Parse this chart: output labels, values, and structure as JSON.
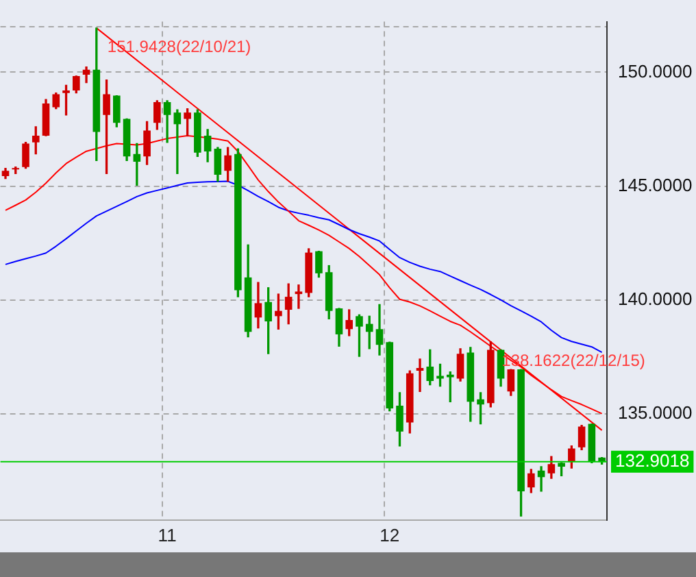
{
  "chart_data": {
    "type": "candlestick",
    "categories": [
      null,
      null,
      null,
      null,
      null,
      null,
      null,
      null,
      null,
      null,
      null,
      null,
      null,
      null,
      null,
      null,
      "11",
      null,
      null,
      null,
      null,
      null,
      null,
      null,
      null,
      null,
      null,
      null,
      null,
      null,
      null,
      null,
      null,
      null,
      null,
      null,
      null,
      null,
      "12",
      null,
      null,
      null,
      null,
      null,
      null,
      null,
      null,
      null,
      null,
      null,
      null,
      null,
      null,
      null,
      null,
      null,
      null,
      null,
      null,
      null
    ],
    "ohlc": [
      [
        145.44,
        145.78,
        145.33,
        145.67
      ],
      [
        145.73,
        145.84,
        145.55,
        145.73
      ],
      [
        145.84,
        146.92,
        145.78,
        146.87
      ],
      [
        146.92,
        147.61,
        146.41,
        147.21
      ],
      [
        147.21,
        148.8,
        147.21,
        148.63
      ],
      [
        148.46,
        149.09,
        148.4,
        149.03
      ],
      [
        149.09,
        149.43,
        148.12,
        149.2
      ],
      [
        149.2,
        149.83,
        149.09,
        149.83
      ],
      [
        149.89,
        150.23,
        149.54,
        150.11
      ],
      [
        150.11,
        151.9428,
        146.12,
        147.38
      ],
      [
        148.12,
        149.66,
        145.55,
        149.03
      ],
      [
        148.97,
        148.97,
        147.6,
        147.78
      ],
      [
        147.95,
        147.95,
        146.12,
        146.3
      ],
      [
        146.41,
        146.87,
        145.04,
        146.07
      ],
      [
        146.3,
        147.83,
        145.95,
        147.44
      ],
      [
        147.78,
        148.75,
        147.49,
        148.69
      ],
      [
        148.69,
        148.75,
        146.92,
        148.12
      ],
      [
        148.23,
        148.35,
        145.55,
        147.72
      ],
      [
        147.95,
        148.4,
        147.21,
        148.23
      ],
      [
        148.23,
        148.35,
        146.3,
        146.47
      ],
      [
        147.21,
        147.49,
        146.07,
        146.52
      ],
      [
        146.64,
        146.7,
        145.21,
        145.5
      ],
      [
        145.67,
        146.7,
        145.21,
        146.35
      ],
      [
        146.41,
        146.64,
        140.14,
        140.43
      ],
      [
        140.99,
        142.42,
        138.38,
        138.6
      ],
      [
        139.23,
        140.77,
        138.77,
        139.86
      ],
      [
        139.91,
        140.54,
        137.64,
        139.06
      ],
      [
        139.29,
        140.26,
        138.72,
        139.52
      ],
      [
        139.57,
        140.71,
        138.95,
        140.14
      ],
      [
        140.26,
        140.66,
        139.63,
        140.37
      ],
      [
        140.31,
        142.25,
        140.14,
        142.08
      ],
      [
        142.14,
        142.14,
        141.0,
        141.17
      ],
      [
        141.22,
        141.51,
        139.17,
        139.52
      ],
      [
        139.63,
        139.63,
        137.97,
        138.49
      ],
      [
        138.72,
        139.57,
        138.43,
        139.12
      ],
      [
        139.29,
        139.35,
        137.52,
        138.83
      ],
      [
        138.95,
        139.29,
        137.86,
        138.6
      ],
      [
        138.72,
        139.8,
        137.58,
        138.03
      ],
      [
        138.15,
        138.15,
        135.13,
        135.24
      ],
      [
        135.36,
        135.93,
        133.59,
        134.22
      ],
      [
        134.62,
        136.89,
        134.16,
        136.78
      ],
      [
        136.89,
        137.41,
        135.98,
        137.01
      ],
      [
        137.07,
        137.81,
        136.27,
        136.44
      ],
      [
        136.67,
        137.18,
        136.21,
        136.55
      ],
      [
        136.72,
        136.84,
        135.53,
        136.61
      ],
      [
        136.55,
        137.86,
        136.44,
        137.64
      ],
      [
        137.69,
        137.92,
        134.67,
        135.53
      ],
      [
        135.64,
        135.93,
        134.56,
        135.41
      ],
      [
        135.47,
        138.1622,
        135.3,
        137.81
      ],
      [
        137.81,
        137.81,
        136.21,
        136.55
      ],
      [
        135.98,
        136.95,
        135.81,
        136.95
      ],
      [
        136.95,
        136.95,
        130.51,
        131.6
      ],
      [
        131.77,
        132.56,
        131.54,
        132.39
      ],
      [
        132.51,
        132.68,
        131.6,
        132.22
      ],
      [
        132.39,
        133.13,
        132.17,
        132.79
      ],
      [
        132.85,
        132.85,
        132.28,
        132.68
      ],
      [
        132.9,
        133.59,
        132.62,
        133.48
      ],
      [
        133.53,
        134.5,
        133.42,
        134.44
      ],
      [
        134.56,
        134.56,
        132.85,
        132.9
      ],
      [
        133.08,
        133.08,
        132.79,
        132.9
      ]
    ],
    "colors": [
      "#d00000",
      "#d00000",
      "#d00000",
      "#d00000",
      "#d00000",
      "#d00000",
      "#d00000",
      "#d00000",
      "#d00000",
      "#009900",
      "#d00000",
      "#009900",
      "#009900",
      "#009900",
      "#d00000",
      "#d00000",
      "#009900",
      "#009900",
      "#d00000",
      "#009900",
      "#009900",
      "#009900",
      "#d00000",
      "#009900",
      "#009900",
      "#d00000",
      "#009900",
      "#d00000",
      "#d00000",
      "#d00000",
      "#d00000",
      "#009900",
      "#009900",
      "#009900",
      "#d00000",
      "#009900",
      "#009900",
      "#009900",
      "#009900",
      "#009900",
      "#d00000",
      "#d00000",
      "#009900",
      "#009900",
      "#009900",
      "#d00000",
      "#009900",
      "#009900",
      "#d00000",
      "#009900",
      "#d00000",
      "#009900",
      "#d00000",
      "#009900",
      "#d00000",
      "#009900",
      "#d00000",
      "#d00000",
      "#009900",
      "#009900"
    ],
    "series": [
      {
        "type": "line",
        "color": "#ff0000",
        "values": [
          143.94,
          144.16,
          144.39,
          144.73,
          145.13,
          145.58,
          145.99,
          146.27,
          146.53,
          146.65,
          146.77,
          146.87,
          146.84,
          146.81,
          146.87,
          146.98,
          147.09,
          147.15,
          147.21,
          147.17,
          147.12,
          147.06,
          146.98,
          146.52,
          145.9,
          145.27,
          144.76,
          144.3,
          143.9,
          143.48,
          143.28,
          143.07,
          142.84,
          142.55,
          142.26,
          141.91,
          141.51,
          141.11,
          140.54,
          140.03,
          139.91,
          139.74,
          139.52,
          139.29,
          139.06,
          138.89,
          138.6,
          138.29,
          137.97,
          137.66,
          137.35,
          137.06,
          136.69,
          136.38,
          136.06,
          135.76,
          135.58,
          135.41,
          135.21,
          135.01
        ]
      },
      {
        "type": "line",
        "color": "#0000ff",
        "values": [
          141.56,
          141.69,
          141.81,
          141.93,
          142.06,
          142.36,
          142.69,
          143.03,
          143.37,
          143.69,
          143.9,
          144.11,
          144.32,
          144.54,
          144.7,
          144.81,
          144.92,
          145.03,
          145.14,
          145.17,
          145.19,
          145.2,
          145.21,
          145.04,
          144.8,
          144.55,
          144.32,
          144.07,
          143.91,
          143.81,
          143.72,
          143.61,
          143.52,
          143.31,
          143.09,
          142.91,
          142.76,
          142.59,
          142.22,
          141.86,
          141.65,
          141.48,
          141.35,
          141.25,
          141.05,
          140.85,
          140.65,
          140.46,
          140.24,
          140.0,
          139.75,
          139.52,
          139.29,
          139.04,
          138.67,
          138.35,
          138.18,
          138.06,
          137.94,
          137.7
        ]
      },
      {
        "type": "line",
        "color": "#ff0000",
        "values": [
          null,
          null,
          null,
          null,
          null,
          null,
          null,
          null,
          null,
          151.94,
          null,
          null,
          null,
          null,
          null,
          null,
          null,
          null,
          null,
          null,
          null,
          null,
          null,
          null,
          null,
          null,
          null,
          null,
          null,
          null,
          null,
          null,
          null,
          null,
          null,
          null,
          null,
          null,
          null,
          null,
          null,
          null,
          null,
          null,
          null,
          null,
          null,
          null,
          138.16,
          null,
          null,
          null,
          null,
          null,
          null,
          null,
          null,
          null,
          null,
          134.28
        ]
      }
    ],
    "ylim": [
      130.34,
      152.22
    ],
    "yticks": [
      {
        "value": 135,
        "label": "135.0000"
      },
      {
        "value": 140,
        "label": "140.0000"
      },
      {
        "value": 145,
        "label": "145.0000"
      },
      {
        "value": 150,
        "label": "150.0000"
      },
      {
        "value": 152,
        "label": null
      }
    ],
    "ref_lines": [
      {
        "axis": "y",
        "value": 132.9018,
        "label": "132.9018",
        "color": "#00cc00"
      }
    ],
    "annotations": [
      "151.9428(22/10/21)",
      "138.1622(22/12/15)"
    ],
    "grid": true
  }
}
